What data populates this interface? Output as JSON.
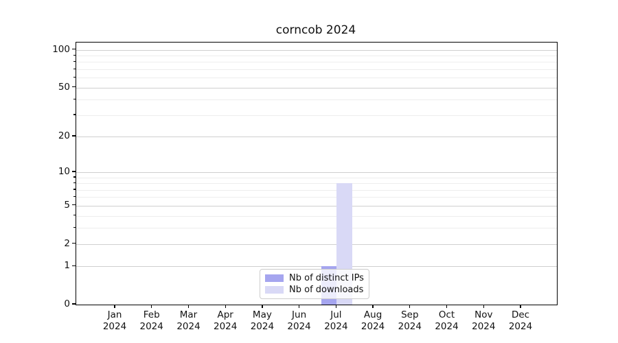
{
  "title": "corncob 2024",
  "chart_data": {
    "type": "bar",
    "title": "corncob 2024",
    "x_months": [
      "Jan",
      "Feb",
      "Mar",
      "Apr",
      "May",
      "Jun",
      "Jul",
      "Aug",
      "Sep",
      "Oct",
      "Nov",
      "Dec"
    ],
    "x_year": "2024",
    "series": [
      {
        "name": "Nb of distinct IPs",
        "color": "#a5a5ef",
        "values": [
          0,
          0,
          0,
          0,
          0,
          0,
          1,
          0,
          0,
          0,
          0,
          0
        ]
      },
      {
        "name": "Nb of downloads",
        "color": "#d9d9f6",
        "values": [
          0,
          0,
          0,
          0,
          0,
          0,
          8,
          0,
          0,
          0,
          0,
          0
        ]
      }
    ],
    "y_axis": {
      "scale": "log10(1+value)",
      "range": [
        0,
        114
      ],
      "major_ticks": [
        0,
        1,
        2,
        5,
        10,
        20,
        50,
        100
      ],
      "minor_ticks": [
        3,
        4,
        6,
        7,
        8,
        9,
        30,
        40,
        60,
        70,
        80,
        90
      ]
    },
    "grid": "horizontal",
    "legend_position": "lower center",
    "colors": {
      "grid_major": "#cfcfcf",
      "grid_minor": "#ededed",
      "spine": "#000000",
      "background": "#ffffff"
    }
  }
}
